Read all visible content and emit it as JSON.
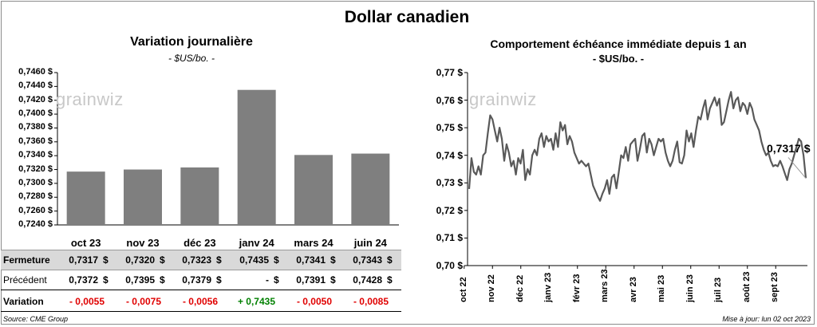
{
  "title": "Dollar canadien",
  "left_panel": {
    "title": "Variation  journalière",
    "subtitle": "- $US/bo. -",
    "logo": "grainwiz"
  },
  "right_panel": {
    "title": "Comportement échéance immédiate depuis 1 an",
    "subtitle": "- $US/bo. -",
    "logo": "grainwiz",
    "last_value_label": "0,7317 $"
  },
  "table": {
    "rows": [
      {
        "label": "Fermeture",
        "values": [
          "0,7317",
          "0,7320",
          "0,7323",
          "0,7435",
          "0,7341",
          "0,7343"
        ],
        "unit": "$"
      },
      {
        "label": "Précédent",
        "values": [
          "0,7372",
          "0,7395",
          "0,7379",
          "-",
          "0,7391",
          "0,7428"
        ],
        "unit": "$"
      },
      {
        "label": "Variation",
        "values": [
          "- 0,0055",
          "- 0,0075",
          "- 0,0056",
          "+ 0,7435",
          "- 0,0050",
          "- 0,0085"
        ]
      }
    ]
  },
  "footer": {
    "source": "Source: CME Group",
    "updated": "Mise à jour: lun 02 oct 2023"
  },
  "colors": {
    "bar": "#7f7f7f",
    "line": "#595959",
    "negative": "#e00000",
    "positive": "#008000",
    "table_header": "#d9d9d9"
  },
  "chart_data": [
    {
      "type": "bar",
      "categories": [
        "oct 23",
        "nov 23",
        "déc 23",
        "janv 24",
        "mars 24",
        "juin 24"
      ],
      "values": [
        0.7317,
        0.732,
        0.7323,
        0.7435,
        0.7341,
        0.7343
      ],
      "ylim": [
        0.724,
        0.746
      ],
      "yticks": [
        "0,7240 $",
        "0,7260 $",
        "0,7280 $",
        "0,7300 $",
        "0,7320 $",
        "0,7340 $",
        "0,7360 $",
        "0,7380 $",
        "0,7400 $",
        "0,7420 $",
        "0,7440 $",
        "0,7460 $"
      ],
      "grid": false
    },
    {
      "type": "line",
      "ylim": [
        0.7,
        0.77
      ],
      "yticks": [
        "0,70 $",
        "0,71 $",
        "0,72 $",
        "0,73 $",
        "0,74 $",
        "0,75 $",
        "0,76 $",
        "0,77 $"
      ],
      "xticks": [
        "oct 22",
        "nov 22",
        "déc 22",
        "janv 23",
        "févr 23",
        "mars 23",
        "avr 23",
        "mai 23",
        "juin 23",
        "juil 23",
        "août 23",
        "sept 23"
      ],
      "grid": false,
      "values": [
        0.7278,
        0.739,
        0.734,
        0.733,
        0.736,
        0.733,
        0.74,
        0.741,
        0.748,
        0.7545,
        0.753,
        0.749,
        0.745,
        0.75,
        0.746,
        0.738,
        0.744,
        0.741,
        0.736,
        0.738,
        0.733,
        0.739,
        0.737,
        0.742,
        0.731,
        0.735,
        0.733,
        0.74,
        0.742,
        0.74,
        0.746,
        0.748,
        0.743,
        0.747,
        0.745,
        0.746,
        0.742,
        0.748,
        0.743,
        0.752,
        0.749,
        0.751,
        0.744,
        0.747,
        0.745,
        0.741,
        0.739,
        0.737,
        0.738,
        0.737,
        0.736,
        0.737,
        0.733,
        0.729,
        0.727,
        0.725,
        0.7235,
        0.726,
        0.728,
        0.731,
        0.726,
        0.732,
        0.733,
        0.728,
        0.734,
        0.74,
        0.739,
        0.743,
        0.738,
        0.744,
        0.745,
        0.746,
        0.738,
        0.742,
        0.747,
        0.748,
        0.741,
        0.746,
        0.744,
        0.74,
        0.743,
        0.746,
        0.745,
        0.746,
        0.741,
        0.738,
        0.736,
        0.738,
        0.742,
        0.745,
        0.7375,
        0.737,
        0.74,
        0.749,
        0.745,
        0.748,
        0.743,
        0.749,
        0.754,
        0.753,
        0.757,
        0.76,
        0.753,
        0.757,
        0.759,
        0.761,
        0.758,
        0.7605,
        0.751,
        0.752,
        0.756,
        0.76,
        0.763,
        0.757,
        0.76,
        0.761,
        0.756,
        0.759,
        0.758,
        0.755,
        0.759,
        0.757,
        0.753,
        0.751,
        0.749,
        0.745,
        0.742,
        0.74,
        0.741,
        0.738,
        0.736,
        0.7365,
        0.736,
        0.738,
        0.736,
        0.7335,
        0.731,
        0.735,
        0.737,
        0.74,
        0.743,
        0.746,
        0.745,
        0.74,
        0.7317
      ]
    }
  ]
}
